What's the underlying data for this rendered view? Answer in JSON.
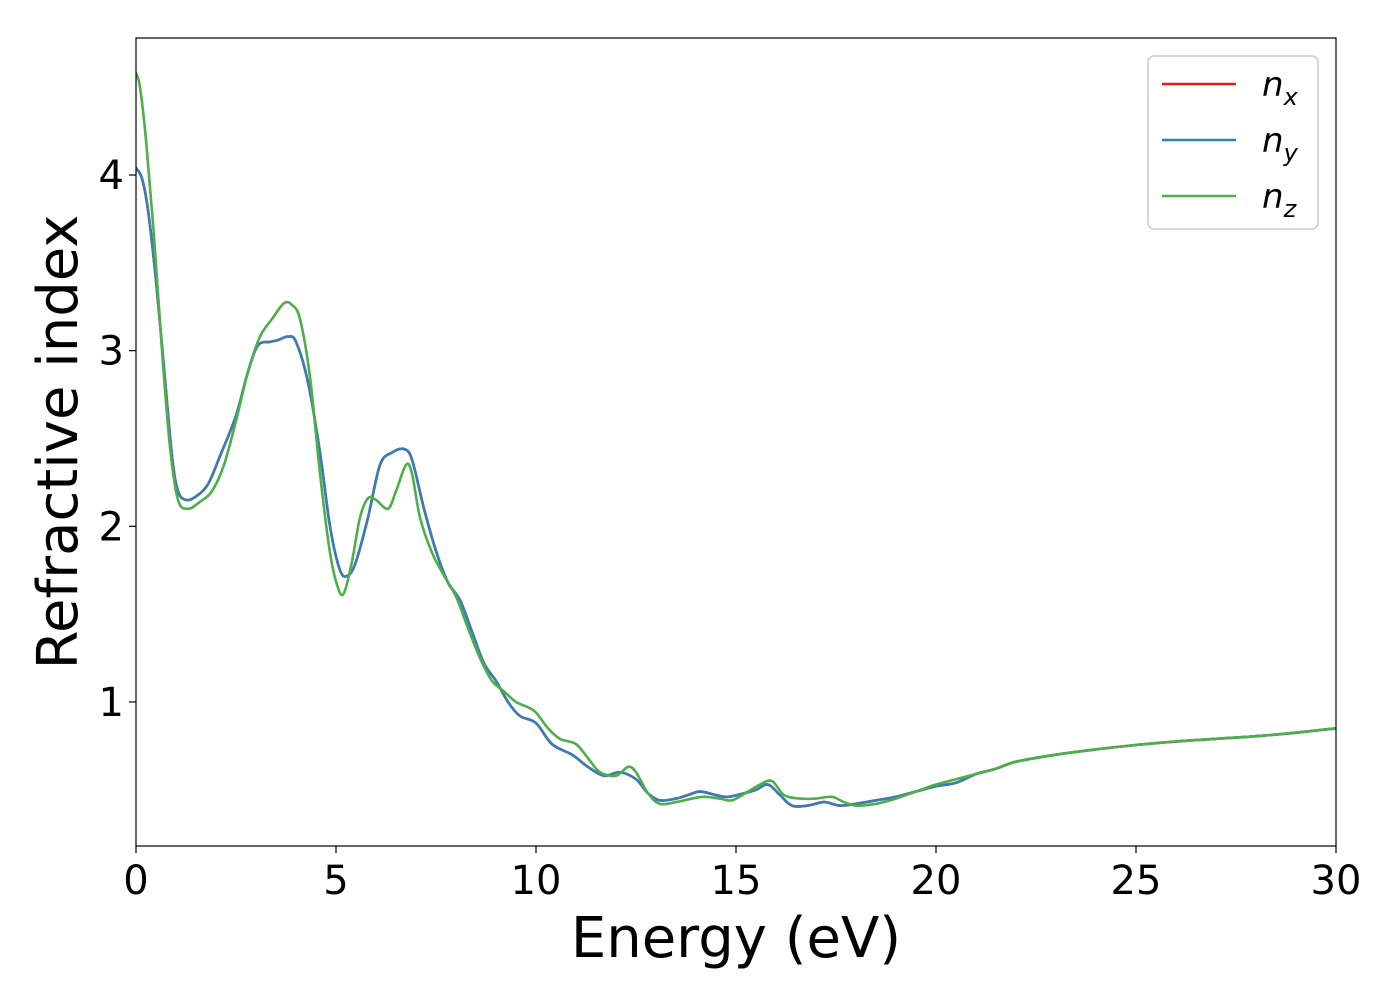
{
  "chart_data": {
    "type": "line",
    "title": "",
    "xlabel": "Energy (eV)",
    "ylabel": "Refractive index",
    "xlim": [
      0,
      30
    ],
    "ylim": [
      0.18,
      4.78
    ],
    "xticks": [
      0,
      5,
      10,
      15,
      20,
      25,
      30
    ],
    "yticks": [
      1,
      2,
      3,
      4
    ],
    "grid": false,
    "legend_position": "top-right",
    "series": [
      {
        "name": "n",
        "subscript": "x",
        "color": "#e41a1c",
        "points": [
          [
            0.0,
            4.04
          ],
          [
            0.15,
            3.98
          ],
          [
            0.3,
            3.8
          ],
          [
            0.5,
            3.4
          ],
          [
            0.7,
            2.9
          ],
          [
            0.9,
            2.4
          ],
          [
            1.05,
            2.2
          ],
          [
            1.25,
            2.15
          ],
          [
            1.5,
            2.17
          ],
          [
            1.8,
            2.24
          ],
          [
            2.1,
            2.4
          ],
          [
            2.5,
            2.63
          ],
          [
            2.8,
            2.88
          ],
          [
            3.05,
            3.03
          ],
          [
            3.35,
            3.05
          ],
          [
            3.55,
            3.06
          ],
          [
            3.8,
            3.08
          ],
          [
            4.0,
            3.05
          ],
          [
            4.3,
            2.82
          ],
          [
            4.6,
            2.42
          ],
          [
            4.85,
            2.0
          ],
          [
            5.1,
            1.75
          ],
          [
            5.3,
            1.72
          ],
          [
            5.5,
            1.8
          ],
          [
            5.8,
            2.05
          ],
          [
            6.1,
            2.35
          ],
          [
            6.4,
            2.42
          ],
          [
            6.7,
            2.44
          ],
          [
            6.9,
            2.38
          ],
          [
            7.2,
            2.1
          ],
          [
            7.5,
            1.86
          ],
          [
            7.8,
            1.68
          ],
          [
            8.1,
            1.58
          ],
          [
            8.4,
            1.4
          ],
          [
            8.7,
            1.22
          ],
          [
            9.0,
            1.12
          ],
          [
            9.3,
            1.0
          ],
          [
            9.6,
            0.92
          ],
          [
            10.0,
            0.88
          ],
          [
            10.4,
            0.76
          ],
          [
            10.9,
            0.7
          ],
          [
            11.3,
            0.63
          ],
          [
            11.7,
            0.58
          ],
          [
            12.1,
            0.6
          ],
          [
            12.5,
            0.56
          ],
          [
            12.8,
            0.48
          ],
          [
            13.1,
            0.44
          ],
          [
            13.5,
            0.45
          ],
          [
            13.8,
            0.47
          ],
          [
            14.1,
            0.49
          ],
          [
            14.5,
            0.47
          ],
          [
            14.8,
            0.46
          ],
          [
            15.2,
            0.48
          ],
          [
            15.5,
            0.5
          ],
          [
            15.8,
            0.53
          ],
          [
            16.1,
            0.47
          ],
          [
            16.4,
            0.41
          ],
          [
            16.8,
            0.41
          ],
          [
            17.2,
            0.43
          ],
          [
            17.6,
            0.41
          ],
          [
            18.0,
            0.42
          ],
          [
            18.5,
            0.44
          ],
          [
            19.0,
            0.46
          ],
          [
            19.5,
            0.49
          ],
          [
            20.0,
            0.52
          ],
          [
            20.5,
            0.54
          ],
          [
            21.0,
            0.59
          ],
          [
            21.5,
            0.62
          ],
          [
            22.0,
            0.66
          ],
          [
            23.0,
            0.7
          ],
          [
            24.0,
            0.73
          ],
          [
            25.0,
            0.755
          ],
          [
            26.0,
            0.775
          ],
          [
            27.0,
            0.79
          ],
          [
            28.0,
            0.805
          ],
          [
            29.0,
            0.825
          ],
          [
            30.0,
            0.85
          ]
        ]
      },
      {
        "name": "n",
        "subscript": "y",
        "color": "#377eb8",
        "points": [
          [
            0.0,
            4.04
          ],
          [
            0.15,
            3.98
          ],
          [
            0.3,
            3.8
          ],
          [
            0.5,
            3.4
          ],
          [
            0.7,
            2.9
          ],
          [
            0.9,
            2.4
          ],
          [
            1.05,
            2.2
          ],
          [
            1.25,
            2.15
          ],
          [
            1.5,
            2.17
          ],
          [
            1.8,
            2.24
          ],
          [
            2.1,
            2.4
          ],
          [
            2.5,
            2.63
          ],
          [
            2.8,
            2.88
          ],
          [
            3.05,
            3.03
          ],
          [
            3.35,
            3.05
          ],
          [
            3.55,
            3.06
          ],
          [
            3.8,
            3.08
          ],
          [
            4.0,
            3.05
          ],
          [
            4.3,
            2.82
          ],
          [
            4.6,
            2.42
          ],
          [
            4.85,
            2.0
          ],
          [
            5.1,
            1.75
          ],
          [
            5.3,
            1.72
          ],
          [
            5.5,
            1.8
          ],
          [
            5.8,
            2.05
          ],
          [
            6.1,
            2.35
          ],
          [
            6.4,
            2.42
          ],
          [
            6.7,
            2.44
          ],
          [
            6.9,
            2.38
          ],
          [
            7.2,
            2.1
          ],
          [
            7.5,
            1.86
          ],
          [
            7.8,
            1.68
          ],
          [
            8.1,
            1.58
          ],
          [
            8.4,
            1.4
          ],
          [
            8.7,
            1.22
          ],
          [
            9.0,
            1.12
          ],
          [
            9.3,
            1.0
          ],
          [
            9.6,
            0.92
          ],
          [
            10.0,
            0.88
          ],
          [
            10.4,
            0.76
          ],
          [
            10.9,
            0.7
          ],
          [
            11.3,
            0.63
          ],
          [
            11.7,
            0.58
          ],
          [
            12.1,
            0.6
          ],
          [
            12.5,
            0.56
          ],
          [
            12.8,
            0.48
          ],
          [
            13.1,
            0.44
          ],
          [
            13.5,
            0.45
          ],
          [
            13.8,
            0.47
          ],
          [
            14.1,
            0.49
          ],
          [
            14.5,
            0.47
          ],
          [
            14.8,
            0.46
          ],
          [
            15.2,
            0.48
          ],
          [
            15.5,
            0.5
          ],
          [
            15.8,
            0.53
          ],
          [
            16.1,
            0.47
          ],
          [
            16.4,
            0.41
          ],
          [
            16.8,
            0.41
          ],
          [
            17.2,
            0.43
          ],
          [
            17.6,
            0.41
          ],
          [
            18.0,
            0.42
          ],
          [
            18.5,
            0.44
          ],
          [
            19.0,
            0.46
          ],
          [
            19.5,
            0.49
          ],
          [
            20.0,
            0.52
          ],
          [
            20.5,
            0.54
          ],
          [
            21.0,
            0.59
          ],
          [
            21.5,
            0.62
          ],
          [
            22.0,
            0.66
          ],
          [
            23.0,
            0.7
          ],
          [
            24.0,
            0.73
          ],
          [
            25.0,
            0.755
          ],
          [
            26.0,
            0.775
          ],
          [
            27.0,
            0.79
          ],
          [
            28.0,
            0.805
          ],
          [
            29.0,
            0.825
          ],
          [
            30.0,
            0.85
          ]
        ]
      },
      {
        "name": "n",
        "subscript": "z",
        "color": "#4daf4a",
        "points": [
          [
            0.0,
            4.58
          ],
          [
            0.1,
            4.5
          ],
          [
            0.25,
            4.2
          ],
          [
            0.45,
            3.65
          ],
          [
            0.65,
            3.0
          ],
          [
            0.85,
            2.45
          ],
          [
            1.05,
            2.15
          ],
          [
            1.3,
            2.1
          ],
          [
            1.6,
            2.14
          ],
          [
            1.9,
            2.2
          ],
          [
            2.2,
            2.35
          ],
          [
            2.5,
            2.6
          ],
          [
            2.8,
            2.88
          ],
          [
            3.1,
            3.08
          ],
          [
            3.4,
            3.18
          ],
          [
            3.7,
            3.27
          ],
          [
            3.9,
            3.26
          ],
          [
            4.1,
            3.18
          ],
          [
            4.35,
            2.85
          ],
          [
            4.6,
            2.3
          ],
          [
            4.85,
            1.85
          ],
          [
            5.05,
            1.65
          ],
          [
            5.2,
            1.62
          ],
          [
            5.4,
            1.8
          ],
          [
            5.6,
            2.05
          ],
          [
            5.8,
            2.16
          ],
          [
            6.0,
            2.15
          ],
          [
            6.3,
            2.1
          ],
          [
            6.5,
            2.2
          ],
          [
            6.75,
            2.35
          ],
          [
            6.9,
            2.3
          ],
          [
            7.1,
            2.05
          ],
          [
            7.4,
            1.85
          ],
          [
            7.7,
            1.72
          ],
          [
            8.0,
            1.6
          ],
          [
            8.3,
            1.42
          ],
          [
            8.6,
            1.25
          ],
          [
            8.9,
            1.12
          ],
          [
            9.2,
            1.06
          ],
          [
            9.5,
            1.0
          ],
          [
            9.8,
            0.97
          ],
          [
            10.0,
            0.94
          ],
          [
            10.3,
            0.85
          ],
          [
            10.6,
            0.79
          ],
          [
            11.0,
            0.76
          ],
          [
            11.3,
            0.68
          ],
          [
            11.6,
            0.6
          ],
          [
            12.0,
            0.58
          ],
          [
            12.3,
            0.63
          ],
          [
            12.5,
            0.6
          ],
          [
            12.8,
            0.48
          ],
          [
            13.1,
            0.42
          ],
          [
            13.5,
            0.43
          ],
          [
            13.9,
            0.45
          ],
          [
            14.2,
            0.46
          ],
          [
            14.6,
            0.45
          ],
          [
            14.9,
            0.44
          ],
          [
            15.3,
            0.49
          ],
          [
            15.6,
            0.53
          ],
          [
            15.9,
            0.55
          ],
          [
            16.2,
            0.47
          ],
          [
            16.6,
            0.45
          ],
          [
            17.0,
            0.45
          ],
          [
            17.4,
            0.46
          ],
          [
            17.7,
            0.43
          ],
          [
            18.0,
            0.41
          ],
          [
            18.5,
            0.42
          ],
          [
            19.0,
            0.45
          ],
          [
            19.5,
            0.49
          ],
          [
            20.0,
            0.53
          ],
          [
            20.5,
            0.56
          ],
          [
            21.0,
            0.59
          ],
          [
            21.5,
            0.62
          ],
          [
            22.0,
            0.66
          ],
          [
            23.0,
            0.7
          ],
          [
            24.0,
            0.73
          ],
          [
            25.0,
            0.755
          ],
          [
            26.0,
            0.775
          ],
          [
            27.0,
            0.79
          ],
          [
            28.0,
            0.805
          ],
          [
            29.0,
            0.825
          ],
          [
            30.0,
            0.85
          ]
        ]
      }
    ]
  }
}
